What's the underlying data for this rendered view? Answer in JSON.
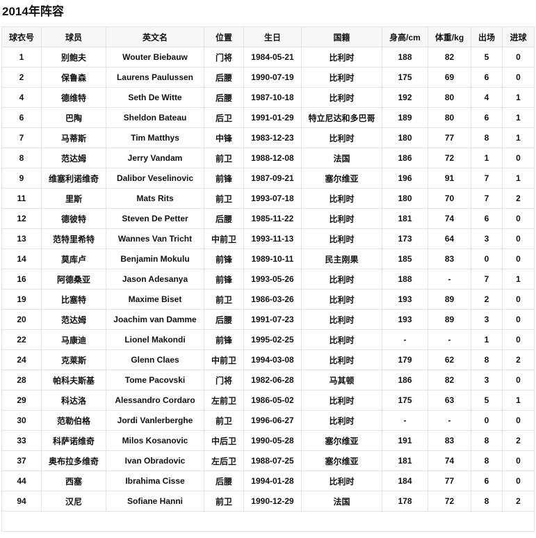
{
  "title": "2014年阵容",
  "columns": [
    "球衣号",
    "球员",
    "英文名",
    "位置",
    "生日",
    "国籍",
    "身高/cm",
    "体重/kg",
    "出场",
    "进球"
  ],
  "rows": [
    [
      "1",
      "别鲍夫",
      "Wouter Biebauw",
      "门将",
      "1984-05-21",
      "比利时",
      "188",
      "82",
      "5",
      "0"
    ],
    [
      "2",
      "保鲁森",
      "Laurens Paulussen",
      "后腰",
      "1990-07-19",
      "比利时",
      "175",
      "69",
      "6",
      "0"
    ],
    [
      "4",
      "德维特",
      "Seth De Witte",
      "后腰",
      "1987-10-18",
      "比利时",
      "192",
      "80",
      "4",
      "1"
    ],
    [
      "6",
      "巴陶",
      "Sheldon Bateau",
      "后卫",
      "1991-01-29",
      "特立尼达和多巴哥",
      "189",
      "80",
      "6",
      "1"
    ],
    [
      "7",
      "马蒂斯",
      "Tim Matthys",
      "中锋",
      "1983-12-23",
      "比利时",
      "180",
      "77",
      "8",
      "1"
    ],
    [
      "8",
      "范达姆",
      "Jerry Vandam",
      "前卫",
      "1988-12-08",
      "法国",
      "186",
      "72",
      "1",
      "0"
    ],
    [
      "9",
      "维塞利诺维奇",
      "Dalibor Veselinovic",
      "前锋",
      "1987-09-21",
      "塞尔维亚",
      "196",
      "91",
      "7",
      "1"
    ],
    [
      "11",
      "里斯",
      "Mats Rits",
      "前卫",
      "1993-07-18",
      "比利时",
      "180",
      "70",
      "7",
      "2"
    ],
    [
      "12",
      "德彼特",
      "Steven De Petter",
      "后腰",
      "1985-11-22",
      "比利时",
      "181",
      "74",
      "6",
      "0"
    ],
    [
      "13",
      "范特里希特",
      "Wannes Van Tricht",
      "中前卫",
      "1993-11-13",
      "比利时",
      "173",
      "64",
      "3",
      "0"
    ],
    [
      "14",
      "莫库卢",
      "Benjamin Mokulu",
      "前锋",
      "1989-10-11",
      "民主刚果",
      "185",
      "83",
      "0",
      "0"
    ],
    [
      "16",
      "阿德桑亚",
      "Jason Adesanya",
      "前锋",
      "1993-05-26",
      "比利时",
      "188",
      "-",
      "7",
      "1"
    ],
    [
      "19",
      "比塞特",
      "Maxime Biset",
      "前卫",
      "1986-03-26",
      "比利时",
      "193",
      "89",
      "2",
      "0"
    ],
    [
      "20",
      "范达姆",
      "Joachim van Damme",
      "后腰",
      "1991-07-23",
      "比利时",
      "193",
      "89",
      "3",
      "0"
    ],
    [
      "22",
      "马康迪",
      "Lionel Makondi",
      "前锋",
      "1995-02-25",
      "比利时",
      "-",
      "-",
      "1",
      "0"
    ],
    [
      "24",
      "克莱斯",
      "Glenn Claes",
      "中前卫",
      "1994-03-08",
      "比利时",
      "179",
      "62",
      "8",
      "2"
    ],
    [
      "28",
      "帕科夫斯基",
      "Tome Pacovski",
      "门将",
      "1982-06-28",
      "马其顿",
      "186",
      "82",
      "3",
      "0"
    ],
    [
      "29",
      "科达洛",
      "Alessandro Cordaro",
      "左前卫",
      "1986-05-02",
      "比利时",
      "175",
      "63",
      "5",
      "1"
    ],
    [
      "30",
      "范勒伯格",
      "Jordi Vanlerberghe",
      "前卫",
      "1996-06-27",
      "比利时",
      "-",
      "-",
      "0",
      "0"
    ],
    [
      "33",
      "科萨诺维奇",
      "Milos Kosanovic",
      "中后卫",
      "1990-05-28",
      "塞尔维亚",
      "191",
      "83",
      "8",
      "2"
    ],
    [
      "37",
      "奥布拉多维奇",
      "Ivan Obradovic",
      "左后卫",
      "1988-07-25",
      "塞尔维亚",
      "181",
      "74",
      "8",
      "0"
    ],
    [
      "44",
      "西塞",
      "Ibrahima Cisse",
      "后腰",
      "1994-01-28",
      "比利时",
      "184",
      "77",
      "6",
      "0"
    ],
    [
      "94",
      "汉尼",
      "Sofiane Hanni",
      "前卫",
      "1990-12-29",
      "法国",
      "178",
      "72",
      "8",
      "2"
    ]
  ]
}
